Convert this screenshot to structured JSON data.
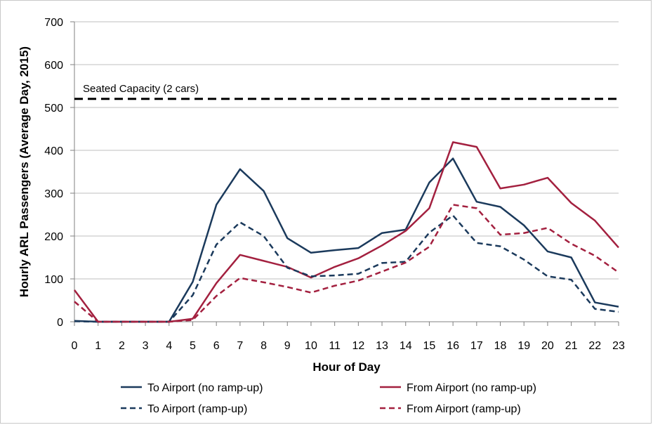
{
  "chart_data": {
    "type": "line",
    "title": "",
    "xlabel": "Hour of Day",
    "ylabel": "Hourly ARL Passengers (Average Day, 2015)",
    "x": [
      0,
      1,
      2,
      3,
      4,
      5,
      6,
      7,
      8,
      9,
      10,
      11,
      12,
      13,
      14,
      15,
      16,
      17,
      18,
      19,
      20,
      21,
      22,
      23
    ],
    "xlim": [
      0,
      23
    ],
    "ylim": [
      0,
      700
    ],
    "yticks": [
      0,
      100,
      200,
      300,
      400,
      500,
      600,
      700
    ],
    "grid": true,
    "series": [
      {
        "name": "To Airport (no ramp-up)",
        "color": "#1b3a5c",
        "dash": "solid",
        "values": [
          2,
          0,
          0,
          0,
          0,
          93,
          273,
          356,
          305,
          195,
          161,
          167,
          172,
          207,
          215,
          325,
          381,
          280,
          268,
          225,
          164,
          150,
          45,
          35
        ]
      },
      {
        "name": "From Airport (no ramp-up)",
        "color": "#a3203f",
        "dash": "solid",
        "values": [
          74,
          0,
          0,
          0,
          0,
          7,
          90,
          156,
          142,
          128,
          103,
          128,
          148,
          178,
          212,
          265,
          419,
          408,
          311,
          320,
          336,
          277,
          236,
          173
        ]
      },
      {
        "name": "To Airport (ramp-up)",
        "color": "#1b3a5c",
        "dash": "dashed",
        "values": [
          1,
          0,
          0,
          0,
          0,
          62,
          180,
          232,
          200,
          126,
          106,
          108,
          112,
          137,
          140,
          208,
          248,
          184,
          176,
          145,
          106,
          98,
          30,
          23
        ]
      },
      {
        "name": "From Airport (ramp-up)",
        "color": "#a3203f",
        "dash": "dashed",
        "values": [
          47,
          0,
          0,
          0,
          0,
          4,
          60,
          102,
          92,
          81,
          68,
          84,
          96,
          117,
          138,
          175,
          273,
          265,
          203,
          207,
          219,
          182,
          154,
          115
        ]
      }
    ],
    "reference_line": {
      "label": "Seated Capacity (2 cars)",
      "value": 520,
      "color": "#000000"
    },
    "legend_position": "bottom"
  }
}
